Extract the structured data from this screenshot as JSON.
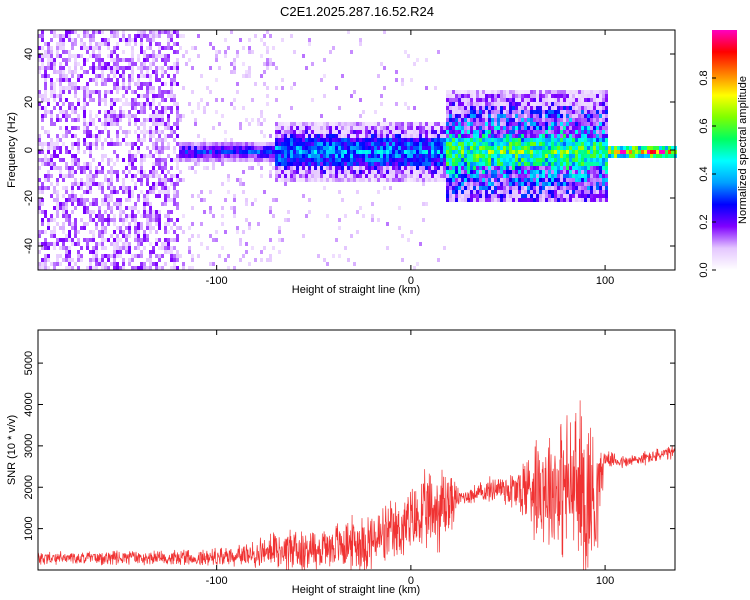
{
  "title": "C2E1.2025.287.16.52.R24",
  "colors": {
    "snr_line": "#f03232",
    "axis": "#000000",
    "background": "#ffffff"
  },
  "chart_data": [
    {
      "type": "heatmap",
      "xlabel": "Height of straight line (km)",
      "ylabel": "Frequency (Hz)",
      "xlim": [
        -192,
        136
      ],
      "ylim": [
        -50,
        50
      ],
      "xticks": [
        -100,
        0,
        100
      ],
      "yticks": [
        -40,
        -20,
        0,
        20,
        40
      ],
      "colorbar": {
        "label": "Normalized spectral amplitude",
        "range": [
          0,
          1
        ],
        "ticks": [
          0.0,
          0.2,
          0.4,
          0.6,
          0.8
        ],
        "tick_labels": [
          "0.0",
          "0.2",
          "0.4",
          "0.6",
          "0.8"
        ],
        "colormap": [
          "#ffffff",
          "#e4c6ff",
          "#7f00ff",
          "#0000ff",
          "#00a0ff",
          "#00ffff",
          "#00ff60",
          "#7fff00",
          "#ffff00",
          "#ff8000",
          "#ff0000",
          "#ff00c0"
        ]
      },
      "regions": [
        {
          "x_range": [
            -192,
            -120
          ],
          "description": "broadband noise",
          "freq_span": [
            -50,
            50
          ],
          "amplitude": 0.1
        },
        {
          "x_range": [
            -120,
            -70
          ],
          "description": "narrow band near 0 Hz",
          "freq_span": [
            -4,
            4
          ],
          "amplitude": 0.3
        },
        {
          "x_range": [
            -70,
            18
          ],
          "description": "widening band",
          "freq_span": [
            -12,
            12
          ],
          "amplitude": 0.4
        },
        {
          "x_range": [
            18,
            100
          ],
          "description": "strong band with bursts",
          "freq_span": [
            -20,
            25
          ],
          "amplitude": 0.6
        },
        {
          "x_range": [
            100,
            136
          ],
          "description": "peak narrow band",
          "freq_span": [
            -3,
            3
          ],
          "amplitude": 0.95
        }
      ]
    },
    {
      "type": "line",
      "xlabel": "Height of straight line (km)",
      "ylabel": "SNR (10 * v/v)",
      "xlim": [
        -192,
        136
      ],
      "ylim": [
        0,
        5800
      ],
      "xticks": [
        -100,
        0,
        100
      ],
      "yticks": [
        1000,
        2000,
        3000,
        4000,
        5000
      ],
      "series": [
        {
          "name": "SNR",
          "x": [
            -190,
            -150,
            -110,
            -80,
            -65,
            -50,
            -35,
            -20,
            -8,
            0,
            10,
            18,
            25,
            35,
            45,
            55,
            65,
            75,
            85,
            90,
            95,
            100,
            110,
            120,
            136
          ],
          "base": [
            280,
            290,
            300,
            380,
            500,
            500,
            620,
            700,
            900,
            1150,
            1400,
            1600,
            1750,
            1850,
            2000,
            1900,
            2100,
            2000,
            2000,
            1800,
            1750,
            2700,
            2600,
            2700,
            2850
          ],
          "spread": [
            200,
            200,
            220,
            350,
            700,
            600,
            700,
            900,
            900,
            1000,
            1200,
            1300,
            200,
            300,
            400,
            700,
            1600,
            1900,
            2300,
            2900,
            2000,
            200,
            200,
            200,
            200
          ]
        }
      ]
    }
  ]
}
